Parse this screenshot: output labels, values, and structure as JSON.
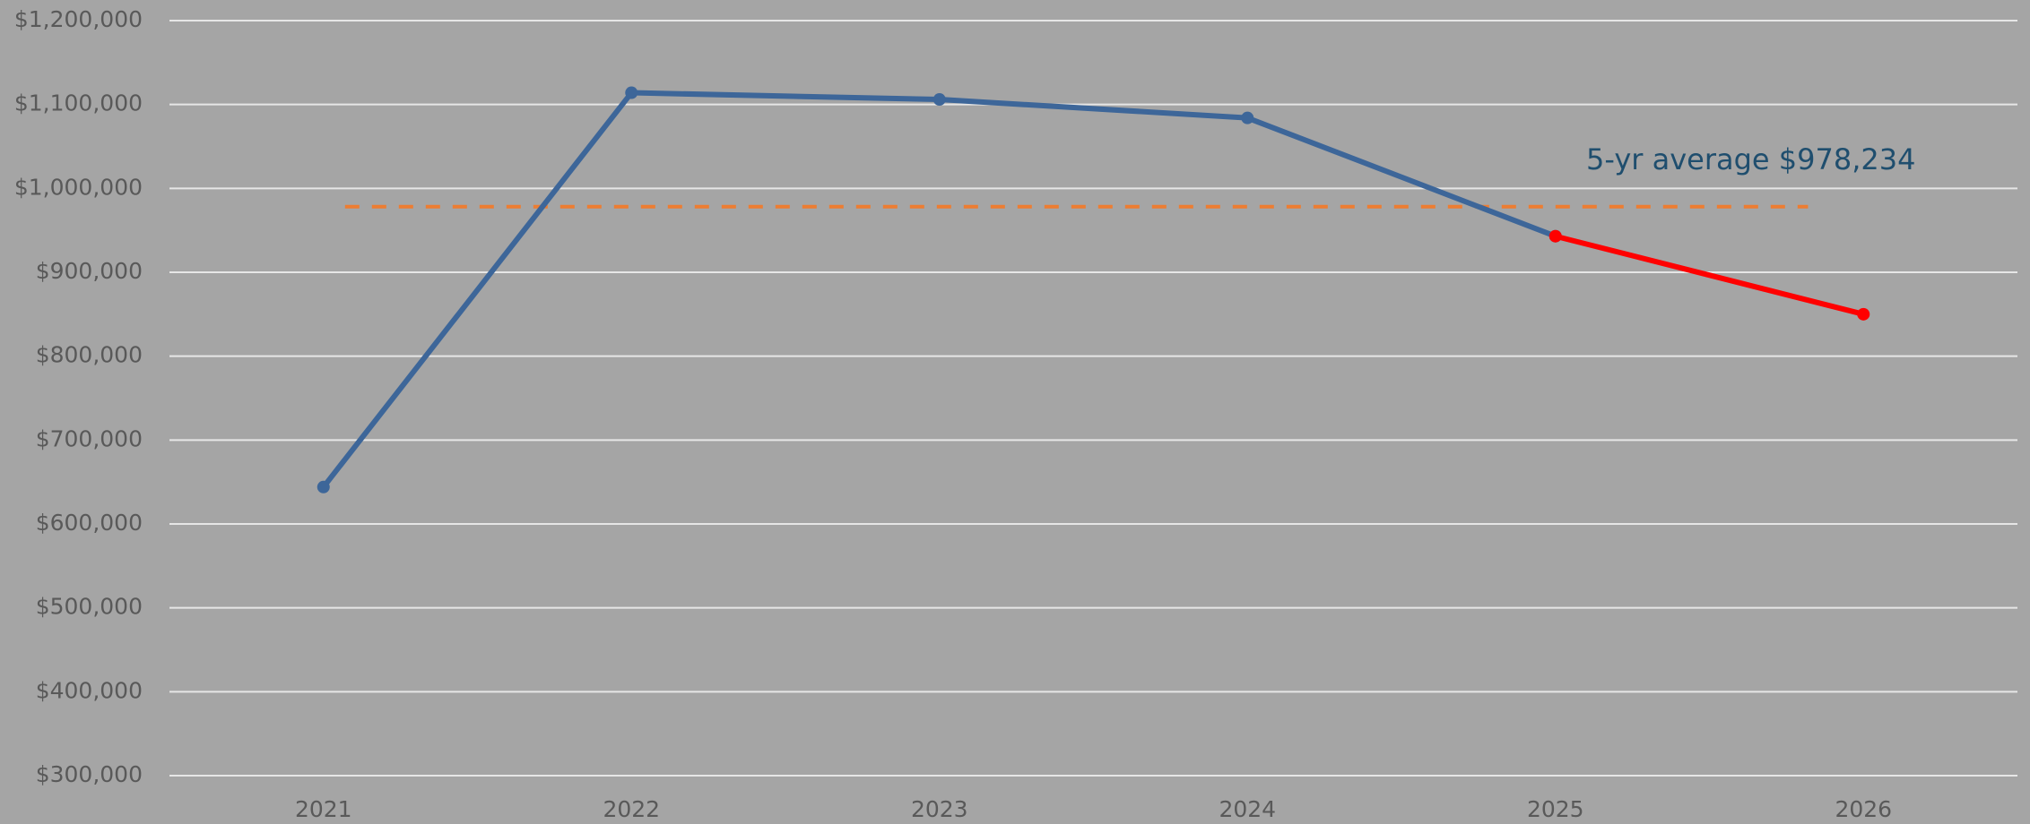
{
  "chart_data": {
    "type": "line",
    "categories": [
      "2021",
      "2022",
      "2023",
      "2024",
      "2025",
      "2026"
    ],
    "series": [
      {
        "color": "#3d6699",
        "values": [
          644000,
          1114000,
          1106000,
          1084000,
          943000,
          null
        ]
      },
      {
        "color": "#ff0000",
        "values": [
          null,
          null,
          null,
          null,
          943000,
          850000
        ]
      }
    ],
    "average_line": {
      "value": 978234,
      "color": "#ed7d31",
      "label": "5-yr average $978,234"
    },
    "ylim": [
      300000,
      1200000
    ],
    "yticks": [
      {
        "value": 300000,
        "label": "$300,000"
      },
      {
        "value": 400000,
        "label": "$400,000"
      },
      {
        "value": 500000,
        "label": "$500,000"
      },
      {
        "value": 600000,
        "label": "$600,000"
      },
      {
        "value": 700000,
        "label": "$700,000"
      },
      {
        "value": 800000,
        "label": "$800,000"
      },
      {
        "value": 900000,
        "label": "$900,000"
      },
      {
        "value": 1000000,
        "label": "$1,000,000"
      },
      {
        "value": 1100000,
        "label": "$1,100,000"
      },
      {
        "value": 1200000,
        "label": "$1,200,000"
      }
    ],
    "grid": true
  }
}
